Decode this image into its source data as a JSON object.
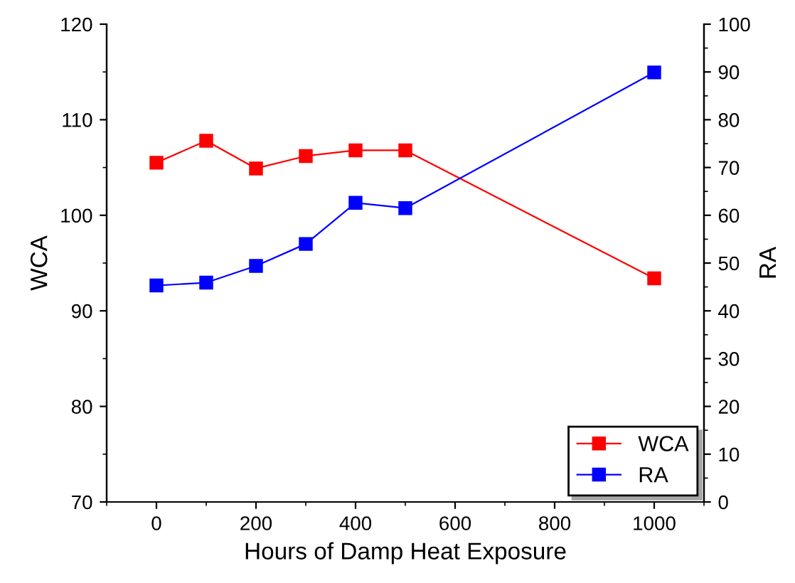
{
  "chart_data": {
    "type": "line",
    "xlabel": "Hours of Damp Heat Exposure",
    "ylabel": "WCA",
    "y2label": "RA",
    "x": [
      0,
      100,
      200,
      300,
      400,
      500,
      1000
    ],
    "series": [
      {
        "name": "WCA",
        "color": "#ff0000",
        "values": [
          105.5,
          107.8,
          104.9,
          106.2,
          106.8,
          106.8,
          93.4
        ]
      },
      {
        "name": "RA",
        "color": "#0000ff",
        "axis": "y2",
        "values": [
          45.3,
          45.9,
          49.4,
          54.0,
          62.6,
          61.5,
          89.9
        ]
      }
    ],
    "xlim": [
      -100,
      1100
    ],
    "xticks": [
      0,
      200,
      400,
      600,
      800,
      1000
    ],
    "ylim": [
      70,
      120
    ],
    "yticks": [
      70,
      80,
      90,
      100,
      110,
      120
    ],
    "y2lim": [
      0,
      100
    ],
    "y2ticks": [
      0,
      10,
      20,
      30,
      40,
      50,
      60,
      70,
      80,
      90,
      100
    ],
    "marker": "square",
    "line_style": "solid",
    "grid": false,
    "legend": "bottom right"
  }
}
